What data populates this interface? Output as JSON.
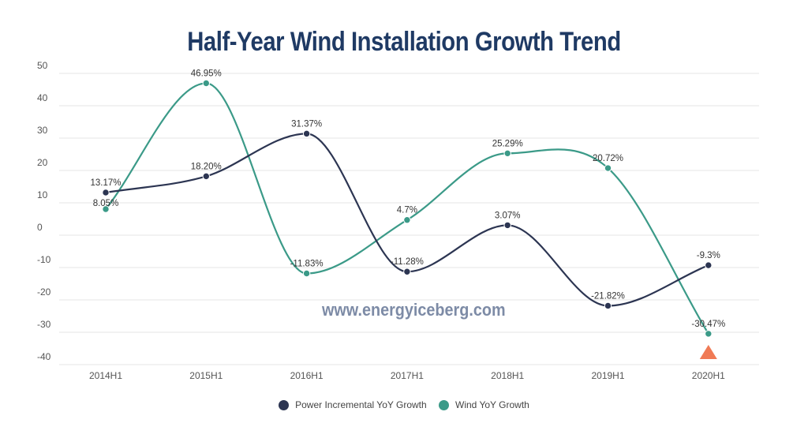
{
  "chart_data": {
    "type": "line",
    "title": "Half-Year Wind Installation Growth Trend",
    "categories": [
      "2014H1",
      "2015H1",
      "2016H1",
      "2017H1",
      "2018H1",
      "2019H1",
      "2020H1"
    ],
    "yticks": [
      50,
      40,
      30,
      20,
      10,
      0,
      -10,
      -20,
      -30,
      -40
    ],
    "ylim": [
      -40,
      50
    ],
    "grid": true,
    "legend_position": "bottom",
    "series": [
      {
        "name": "Power Incremental YoY Growth",
        "color": "#2c3552",
        "values": [
          13.17,
          18.2,
          31.37,
          -11.28,
          3.07,
          -21.82,
          -9.3
        ],
        "labels": [
          "13.17%",
          "18.20%",
          "31.37%",
          "-11.28%",
          "3.07%",
          "-21.82%",
          "-9.3%"
        ]
      },
      {
        "name": "Wind YoY Growth",
        "color": "#3b9a88",
        "values": [
          8.05,
          46.95,
          -11.83,
          4.7,
          25.29,
          20.72,
          -30.47
        ],
        "labels": [
          "8.05%",
          "46.95%",
          "-11.83%",
          "4.7%",
          "25.29%",
          "20.72%",
          "-30.47%"
        ]
      }
    ],
    "marker_color": "#f07a55"
  },
  "watermark": "www.energyiceberg.com"
}
